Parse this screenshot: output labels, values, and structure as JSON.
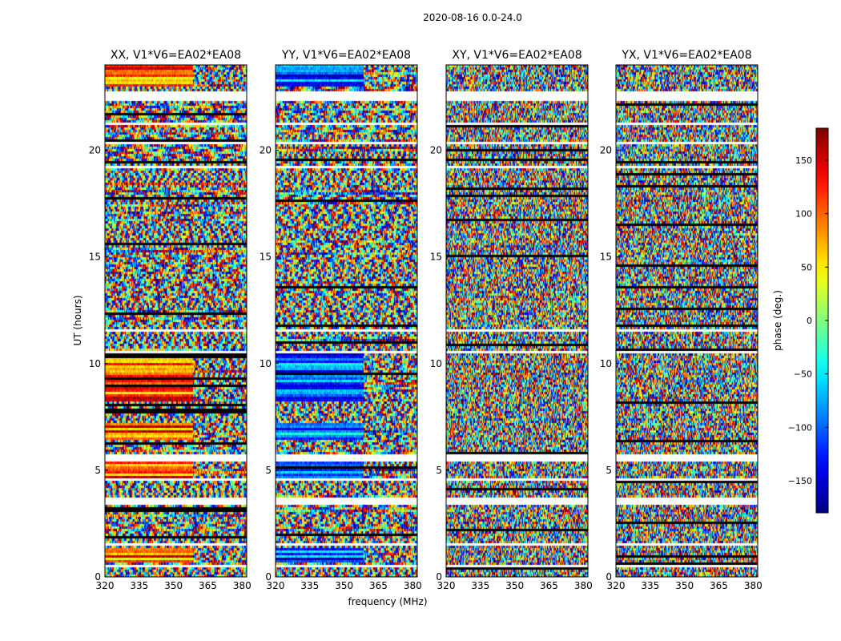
{
  "figure": {
    "suptitle": "2020-08-16 0.0-24.0"
  },
  "chart_data": {
    "type": "heatmap",
    "shared_xlabel": "frequency (MHz)",
    "shared_ylabel": "UT (hours)",
    "xlim": [
      320,
      382
    ],
    "ylim": [
      0,
      24
    ],
    "x_ticks": [
      320,
      335,
      350,
      365,
      380
    ],
    "y_ticks": [
      0,
      5,
      10,
      15,
      20
    ],
    "panels": [
      {
        "title": "XX, V1*V6=EA02*EA08",
        "polarization": "XX"
      },
      {
        "title": "YY, V1*V6=EA02*EA08",
        "polarization": "YY"
      },
      {
        "title": "XY, V1*V6=EA02*EA08",
        "polarization": "XY"
      },
      {
        "title": "YX, V1*V6=EA02*EA08",
        "polarization": "YX"
      }
    ],
    "colorbar": {
      "label": "phase (deg.)",
      "range": [
        -180,
        180
      ],
      "ticks": [
        -150,
        -100,
        -50,
        0,
        50,
        100,
        150
      ],
      "tick_labels": [
        "−150",
        "−100",
        "−50",
        "0",
        "50",
        "100",
        "150"
      ],
      "colormap": "jet"
    },
    "data_gaps_hours": [
      [
        22.4,
        22.8
      ],
      [
        21.2,
        21.35
      ],
      [
        20.3,
        20.45
      ],
      [
        19.2,
        19.3
      ],
      [
        11.5,
        11.65
      ],
      [
        10.55,
        10.7
      ],
      [
        5.5,
        5.8
      ],
      [
        4.55,
        4.65
      ],
      [
        3.45,
        3.75
      ],
      [
        1.5,
        1.6
      ],
      [
        0.55,
        0.65
      ]
    ],
    "coherent_band_hours": [
      [
        23.0,
        24.0
      ],
      [
        8.3,
        10.5
      ],
      [
        6.5,
        7.3
      ],
      [
        4.6,
        5.5
      ],
      [
        0.7,
        1.4
      ]
    ]
  }
}
